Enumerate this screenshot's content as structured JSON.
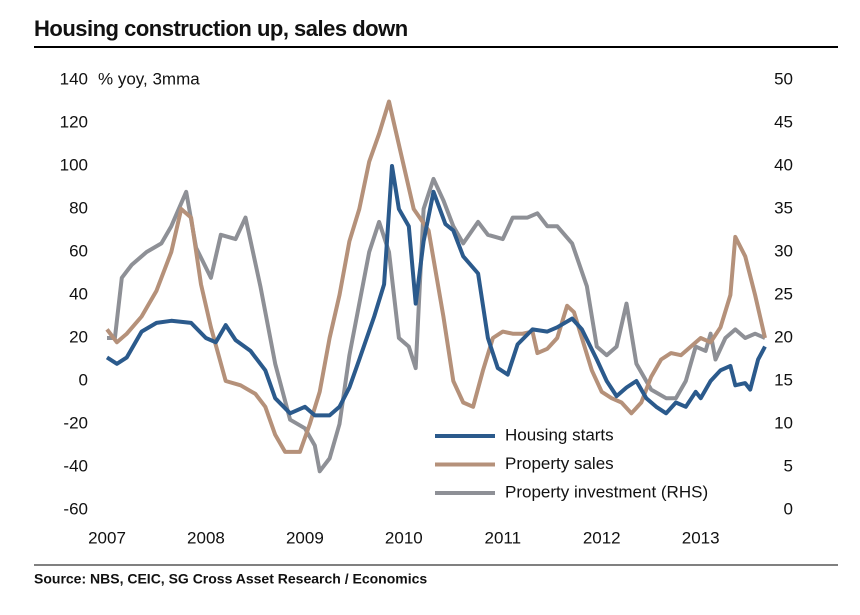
{
  "chart_data": {
    "type": "line",
    "title": "Housing construction up, sales down",
    "y_axis_label": "% yoy, 3mma",
    "source": "Source: NBS, CEIC, SG Cross Asset Research / Economics",
    "xlim": [
      2007,
      2013.65
    ],
    "xticks": [
      2007,
      2008,
      2009,
      2010,
      2011,
      2012,
      2013
    ],
    "ylim": [
      -60,
      140
    ],
    "yticks": [
      -60,
      -40,
      -20,
      0,
      20,
      40,
      60,
      80,
      100,
      120,
      140
    ],
    "y2lim": [
      0,
      50
    ],
    "y2ticks": [
      0,
      5,
      10,
      15,
      20,
      25,
      30,
      35,
      40,
      45,
      50
    ],
    "grid": false,
    "legend": "bottom",
    "series": [
      {
        "name": "Housing starts",
        "color": "#2b5a8c",
        "x": [
          2007.0,
          2007.1,
          2007.2,
          2007.35,
          2007.5,
          2007.65,
          2007.85,
          2008.0,
          2008.1,
          2008.2,
          2008.3,
          2008.45,
          2008.6,
          2008.7,
          2008.85,
          2009.0,
          2009.1,
          2009.25,
          2009.35,
          2009.45,
          2009.55,
          2009.7,
          2009.8,
          2009.88,
          2009.95,
          2010.05,
          2010.12,
          2010.2,
          2010.3,
          2010.42,
          2010.5,
          2010.6,
          2010.75,
          2010.85,
          2010.95,
          2011.05,
          2011.15,
          2011.3,
          2011.45,
          2011.55,
          2011.7,
          2011.8,
          2011.95,
          2012.05,
          2012.15,
          2012.25,
          2012.35,
          2012.45,
          2012.55,
          2012.65,
          2012.75,
          2012.85,
          2012.95,
          2013.0,
          2013.1,
          2013.2,
          2013.3,
          2013.35,
          2013.45,
          2013.5,
          2013.58,
          2013.65
        ],
        "values": [
          11,
          8,
          11,
          23,
          27,
          28,
          27,
          20,
          18,
          26,
          19,
          14,
          5,
          -8,
          -15,
          -12,
          -16,
          -16,
          -12,
          -3,
          10,
          30,
          45,
          100,
          80,
          72,
          36,
          65,
          88,
          73,
          70,
          58,
          50,
          20,
          6,
          3,
          17,
          24,
          23,
          25,
          29,
          24,
          10,
          0,
          -7,
          -3,
          0,
          -8,
          -12,
          -15,
          -10,
          -12,
          -5,
          -8,
          0,
          5,
          7,
          -2,
          -1,
          -4,
          10,
          16
        ]
      },
      {
        "name": "Property sales",
        "color": "#b5917a",
        "x": [
          2007.0,
          2007.1,
          2007.2,
          2007.35,
          2007.5,
          2007.65,
          2007.75,
          2007.85,
          2007.95,
          2008.05,
          2008.2,
          2008.35,
          2008.5,
          2008.6,
          2008.7,
          2008.8,
          2008.95,
          2009.05,
          2009.15,
          2009.25,
          2009.35,
          2009.45,
          2009.55,
          2009.65,
          2009.75,
          2009.85,
          2009.9,
          2010.0,
          2010.1,
          2010.25,
          2010.4,
          2010.5,
          2010.6,
          2010.7,
          2010.8,
          2010.9,
          2011.0,
          2011.1,
          2011.2,
          2011.3,
          2011.35,
          2011.45,
          2011.55,
          2011.65,
          2011.72,
          2011.8,
          2011.9,
          2012.0,
          2012.1,
          2012.2,
          2012.3,
          2012.4,
          2012.5,
          2012.6,
          2012.7,
          2012.8,
          2012.9,
          2013.0,
          2013.1,
          2013.2,
          2013.3,
          2013.35,
          2013.45,
          2013.55,
          2013.65
        ],
        "values": [
          24,
          18,
          22,
          30,
          42,
          60,
          80,
          76,
          45,
          25,
          0,
          -2,
          -6,
          -12,
          -25,
          -33,
          -33,
          -20,
          -5,
          20,
          40,
          65,
          80,
          102,
          115,
          130,
          120,
          100,
          80,
          70,
          30,
          0,
          -10,
          -12,
          5,
          20,
          23,
          22,
          22,
          23,
          13,
          15,
          20,
          35,
          32,
          20,
          5,
          -5,
          -8,
          -10,
          -15,
          -10,
          2,
          10,
          13,
          12,
          16,
          20,
          18,
          25,
          40,
          67,
          58,
          40,
          20
        ]
      },
      {
        "name": "Property investment (RHS)",
        "color": "#8e9096",
        "axis": "y2",
        "x": [
          2007.0,
          2007.08,
          2007.15,
          2007.25,
          2007.4,
          2007.55,
          2007.65,
          2007.8,
          2007.9,
          2008.05,
          2008.15,
          2008.3,
          2008.4,
          2008.55,
          2008.7,
          2008.85,
          2009.0,
          2009.1,
          2009.15,
          2009.25,
          2009.35,
          2009.45,
          2009.55,
          2009.65,
          2009.75,
          2009.85,
          2009.95,
          2010.05,
          2010.12,
          2010.2,
          2010.3,
          2010.4,
          2010.5,
          2010.6,
          2010.75,
          2010.85,
          2011.0,
          2011.1,
          2011.25,
          2011.35,
          2011.45,
          2011.55,
          2011.7,
          2011.85,
          2011.95,
          2012.05,
          2012.15,
          2012.25,
          2012.35,
          2012.5,
          2012.65,
          2012.75,
          2012.85,
          2012.95,
          2013.05,
          2013.1,
          2013.15,
          2013.25,
          2013.35,
          2013.45,
          2013.55,
          2013.65
        ],
        "values": [
          20,
          20,
          27,
          28.5,
          30,
          31,
          33,
          37,
          30.5,
          27,
          32,
          31.5,
          34,
          26,
          17,
          10.5,
          9.5,
          7.5,
          4.5,
          6,
          10,
          18,
          24,
          30,
          33.5,
          30,
          20,
          19,
          16.5,
          35,
          38.5,
          36,
          33,
          31,
          33.5,
          32,
          31.5,
          34,
          34,
          34.5,
          33,
          33,
          31,
          26,
          19,
          18,
          19,
          24,
          17,
          14,
          13,
          13,
          15,
          19,
          18.5,
          20.5,
          17.5,
          20,
          21,
          20,
          20.5,
          20
        ]
      }
    ]
  }
}
